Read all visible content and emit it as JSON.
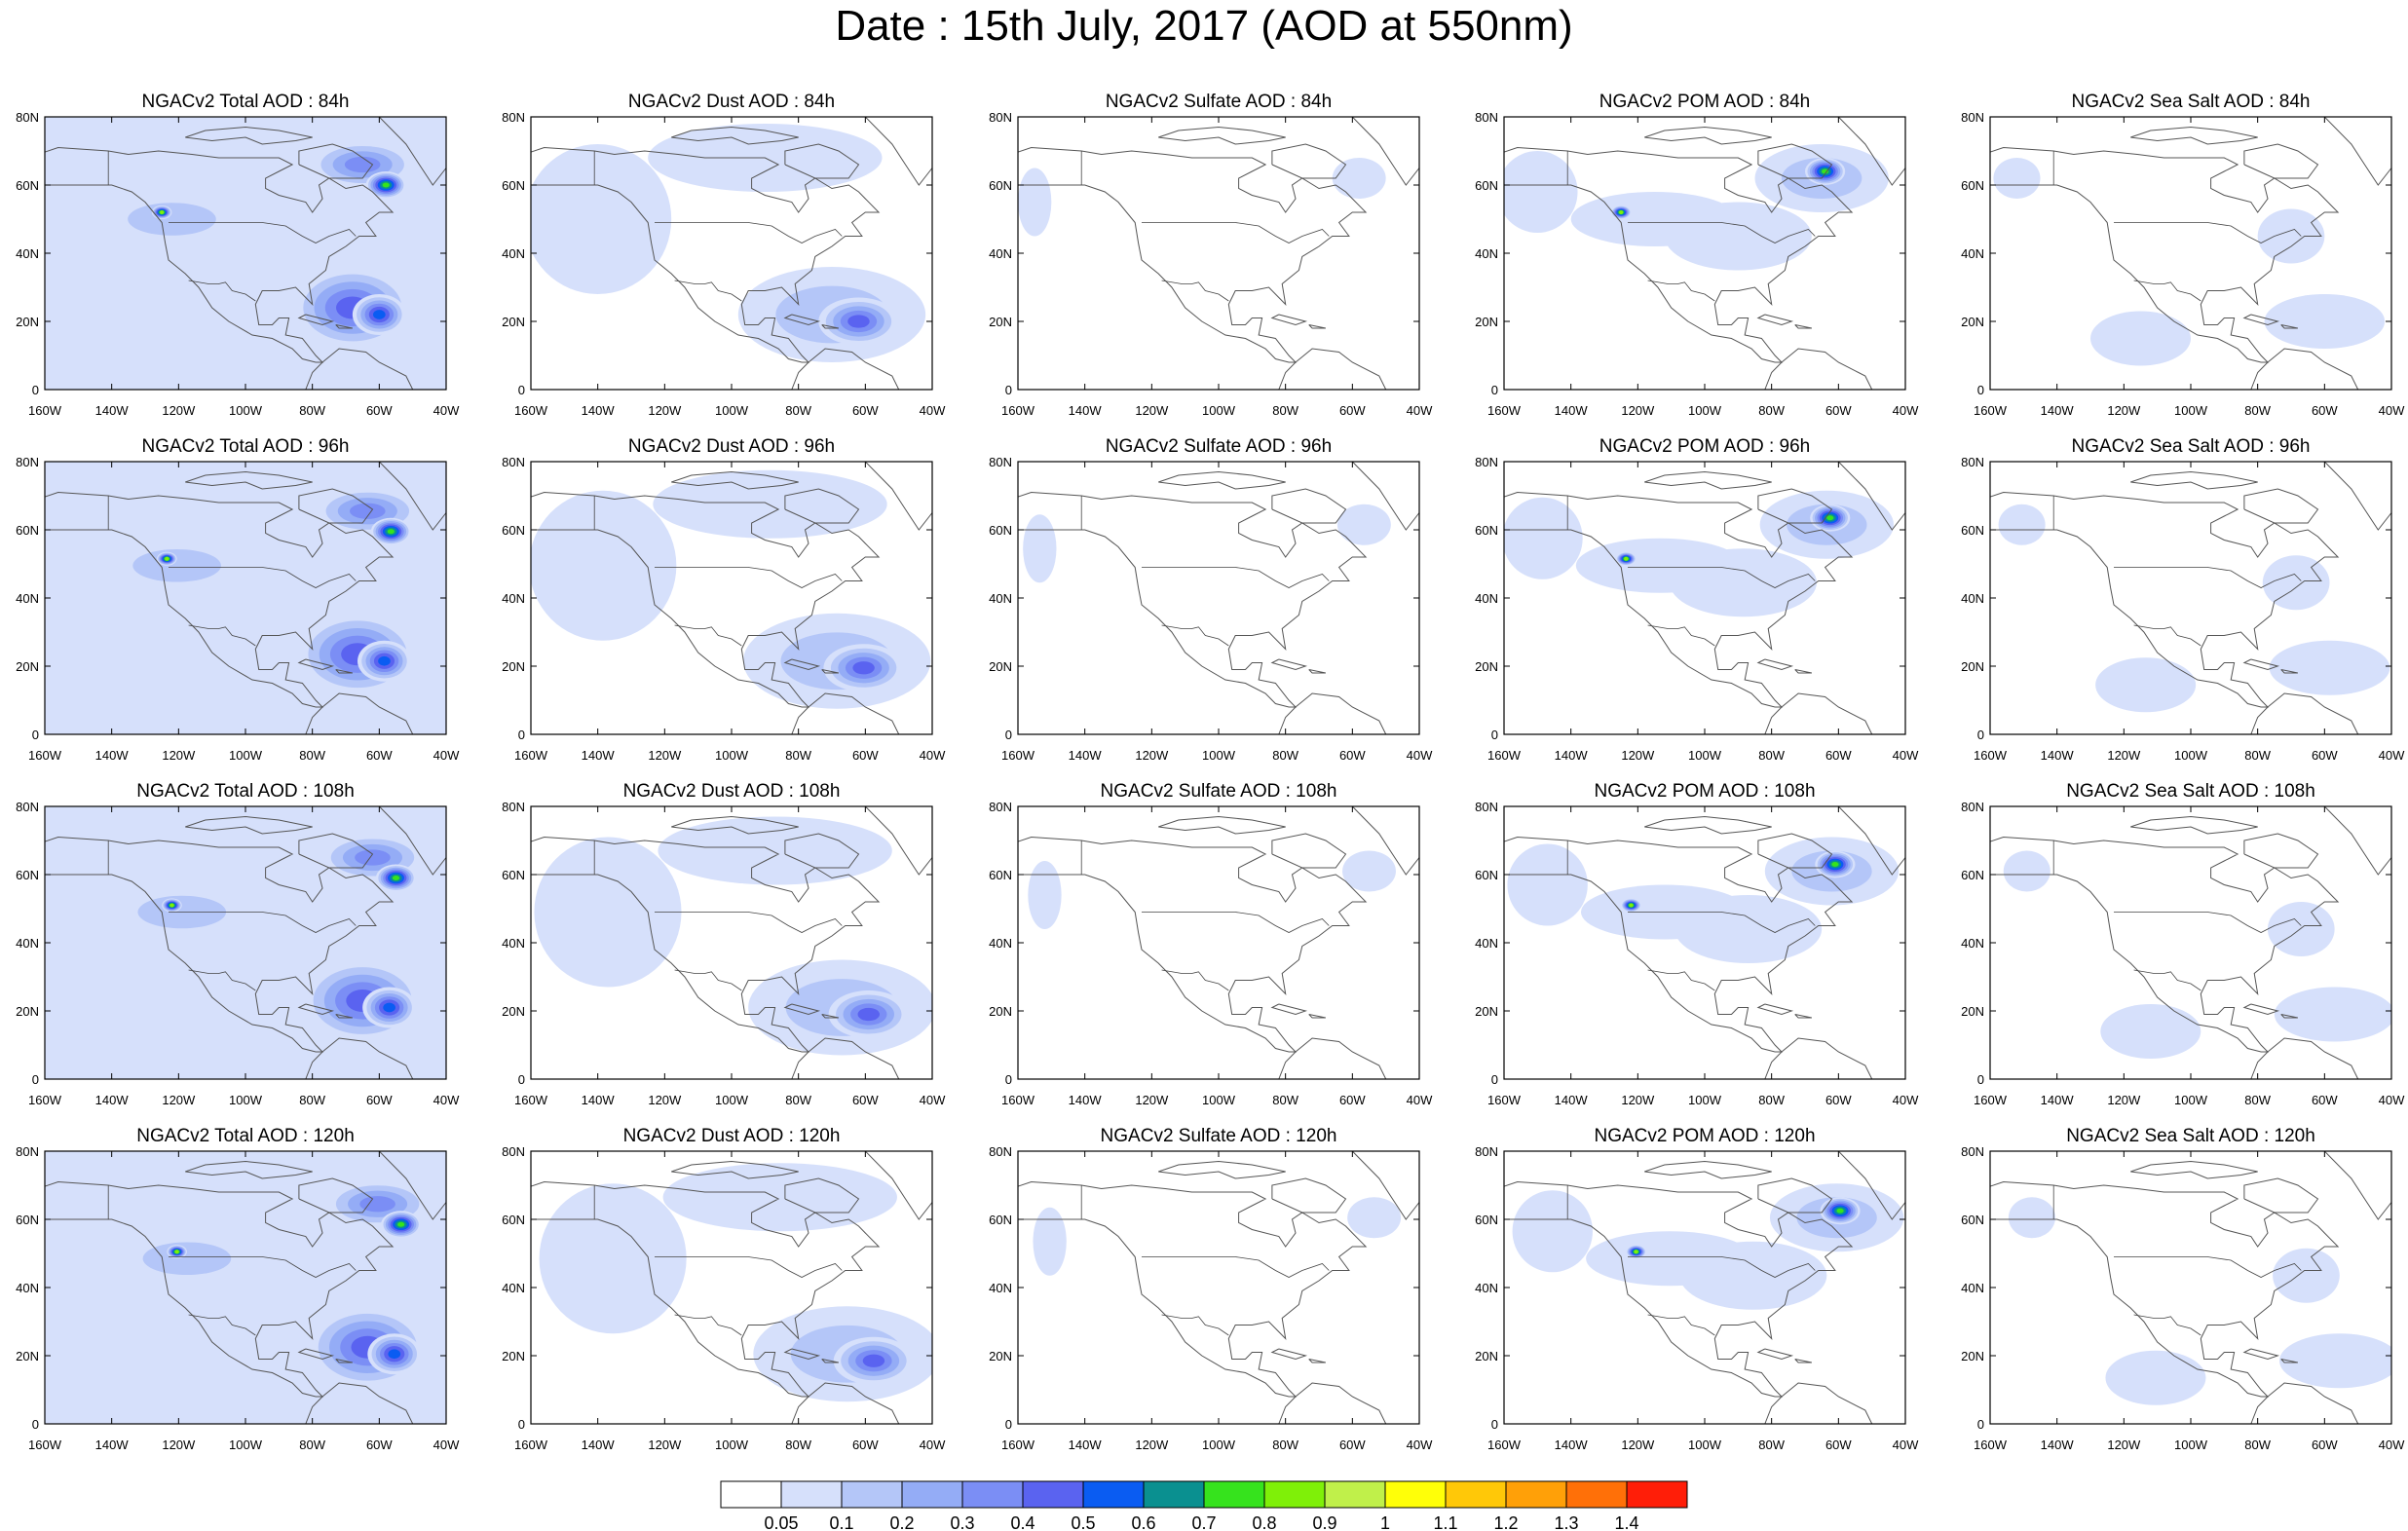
{
  "title": "Date : 15th July, 2017 (AOD at 550nm)",
  "map": {
    "lon_range": [
      -160,
      -40
    ],
    "lat_range": [
      0,
      80
    ],
    "lon_ticks": [
      "160W",
      "140W",
      "120W",
      "100W",
      "80W",
      "60W",
      "40W"
    ],
    "lat_ticks": [
      "0",
      "20N",
      "40N",
      "60N",
      "80N"
    ],
    "coastline_color": "#555555",
    "border_color": "#000000"
  },
  "panels": [
    {
      "title": "NGACv2 Total AOD : 84h",
      "species": "total",
      "hour": 84
    },
    {
      "title": "NGACv2 Dust AOD : 84h",
      "species": "dust",
      "hour": 84
    },
    {
      "title": "NGACv2 Sulfate AOD : 84h",
      "species": "sulfate",
      "hour": 84
    },
    {
      "title": "NGACv2 POM AOD : 84h",
      "species": "pom",
      "hour": 84
    },
    {
      "title": "NGACv2 Sea Salt AOD : 84h",
      "species": "seasalt",
      "hour": 84
    },
    {
      "title": "NGACv2 Total AOD : 96h",
      "species": "total",
      "hour": 96
    },
    {
      "title": "NGACv2 Dust AOD : 96h",
      "species": "dust",
      "hour": 96
    },
    {
      "title": "NGACv2 Sulfate AOD : 96h",
      "species": "sulfate",
      "hour": 96
    },
    {
      "title": "NGACv2 POM AOD : 96h",
      "species": "pom",
      "hour": 96
    },
    {
      "title": "NGACv2 Sea Salt AOD : 96h",
      "species": "seasalt",
      "hour": 96
    },
    {
      "title": "NGACv2 Total AOD : 108h",
      "species": "total",
      "hour": 108
    },
    {
      "title": "NGACv2 Dust AOD : 108h",
      "species": "dust",
      "hour": 108
    },
    {
      "title": "NGACv2 Sulfate AOD : 108h",
      "species": "sulfate",
      "hour": 108
    },
    {
      "title": "NGACv2 POM AOD : 108h",
      "species": "pom",
      "hour": 108
    },
    {
      "title": "NGACv2 Sea Salt AOD : 108h",
      "species": "seasalt",
      "hour": 108
    },
    {
      "title": "NGACv2 Total AOD : 120h",
      "species": "total",
      "hour": 120
    },
    {
      "title": "NGACv2 Dust AOD : 120h",
      "species": "dust",
      "hour": 120
    },
    {
      "title": "NGACv2 Sulfate AOD : 120h",
      "species": "sulfate",
      "hour": 120
    },
    {
      "title": "NGACv2 POM AOD : 120h",
      "species": "pom",
      "hour": 120
    },
    {
      "title": "NGACv2 Sea Salt  AOD : 120h",
      "species": "seasalt",
      "hour": 120
    }
  ],
  "colorbar": {
    "labels": [
      "0.05",
      "0.1",
      "0.2",
      "0.3",
      "0.4",
      "0.5",
      "0.6",
      "0.7",
      "0.8",
      "0.9",
      "1",
      "1.1",
      "1.2",
      "1.3",
      "1.4"
    ],
    "colors": [
      "#ffffff",
      "#d6e0fb",
      "#b4c6f8",
      "#94acf6",
      "#7b8ef5",
      "#5a63f0",
      "#0a5cf2",
      "#0a9090",
      "#36e31d",
      "#7ff008",
      "#c0f04a",
      "#ffff08",
      "#ffc808",
      "#ffa008",
      "#ff7008",
      "#ff1e08"
    ]
  },
  "fields": {
    "total": {
      "background": 1,
      "blobs": [
        {
          "lon": -122,
          "lat": 50,
          "rx": 22,
          "ry": 8,
          "level": 2
        },
        {
          "lon": -65,
          "lat": 66,
          "rx": 16,
          "ry": 7,
          "level": 4
        },
        {
          "lon": -58,
          "lat": 60,
          "rx": 6,
          "ry": 4,
          "level": 8
        },
        {
          "lon": -68,
          "lat": 24,
          "rx": 18,
          "ry": 12,
          "level": 5
        },
        {
          "lon": -60,
          "lat": 22,
          "rx": 8,
          "ry": 6,
          "level": 6
        },
        {
          "lon": -125,
          "lat": 52,
          "rx": 3,
          "ry": 2,
          "level": 9
        }
      ]
    },
    "dust": {
      "background": 0,
      "blobs": [
        {
          "lon": -140,
          "lat": 50,
          "rx": 22,
          "ry": 22,
          "level": 1
        },
        {
          "lon": -90,
          "lat": 68,
          "rx": 35,
          "ry": 10,
          "level": 1
        },
        {
          "lon": -70,
          "lat": 22,
          "rx": 28,
          "ry": 14,
          "level": 2
        },
        {
          "lon": -62,
          "lat": 20,
          "rx": 12,
          "ry": 7,
          "level": 5
        }
      ]
    },
    "sulfate": {
      "background": 0,
      "blobs": [
        {
          "lon": -155,
          "lat": 55,
          "rx": 5,
          "ry": 10,
          "level": 1
        },
        {
          "lon": -58,
          "lat": 62,
          "rx": 8,
          "ry": 6,
          "level": 1
        }
      ]
    },
    "pom": {
      "background": 0,
      "blobs": [
        {
          "lon": -150,
          "lat": 58,
          "rx": 12,
          "ry": 12,
          "level": 1
        },
        {
          "lon": -115,
          "lat": 50,
          "rx": 25,
          "ry": 8,
          "level": 1
        },
        {
          "lon": -90,
          "lat": 45,
          "rx": 22,
          "ry": 10,
          "level": 1
        },
        {
          "lon": -65,
          "lat": 62,
          "rx": 20,
          "ry": 10,
          "level": 2
        },
        {
          "lon": -64,
          "lat": 64,
          "rx": 6,
          "ry": 4,
          "level": 8
        },
        {
          "lon": -125,
          "lat": 52,
          "rx": 3,
          "ry": 2,
          "level": 9
        }
      ]
    },
    "seasalt": {
      "background": 0,
      "blobs": [
        {
          "lon": -152,
          "lat": 62,
          "rx": 7,
          "ry": 6,
          "level": 1
        },
        {
          "lon": -115,
          "lat": 15,
          "rx": 15,
          "ry": 8,
          "level": 1
        },
        {
          "lon": -60,
          "lat": 20,
          "rx": 18,
          "ry": 8,
          "level": 1
        },
        {
          "lon": -70,
          "lat": 45,
          "rx": 10,
          "ry": 8,
          "level": 1
        }
      ]
    }
  }
}
